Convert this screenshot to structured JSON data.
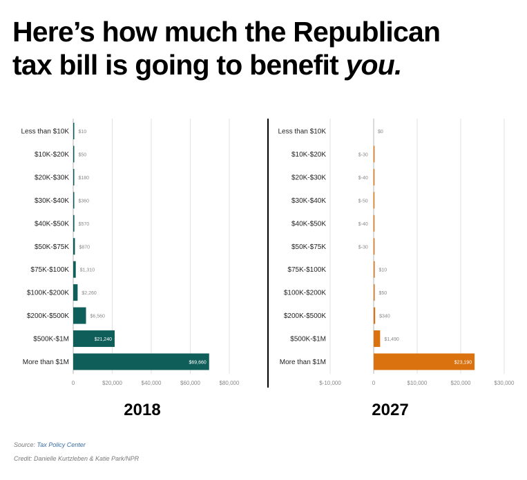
{
  "headline": {
    "line1": "Here’s how much the Republican",
    "line2_prefix": "tax bill is going to benefit ",
    "line2_emphasis": "you."
  },
  "footer": {
    "source_label": "Source: ",
    "source_name": "Tax Policy Center",
    "credit": "Credit: Danielle Kurtzleben & Katie Park/NPR"
  },
  "colors": {
    "bar_2018": "#0f5e5a",
    "bar_2027": "#d9720f",
    "grid": "#e2e2e2",
    "label": "#222222",
    "value_label": "#888888",
    "divider": "#000000"
  },
  "chart_data": [
    {
      "type": "bar",
      "orientation": "horizontal",
      "title": "2018",
      "categories": [
        "Less than $10K",
        "$10K-$20K",
        "$20K-$30K",
        "$30K-$40K",
        "$40K-$50K",
        "$50K-$75K",
        "$75K-$100K",
        "$100K-$200K",
        "$200K-$500K",
        "$500K-$1M",
        "More than $1M"
      ],
      "values": [
        10,
        50,
        180,
        360,
        570,
        870,
        1310,
        2260,
        6560,
        21240,
        69660
      ],
      "value_labels": [
        "$10",
        "$50",
        "$180",
        "$360",
        "$570",
        "$870",
        "$1,310",
        "$2,260",
        "$6,560",
        "$21,240",
        "$69,660"
      ],
      "xlim": [
        0,
        80000
      ],
      "xticks": [
        0,
        20000,
        40000,
        60000,
        80000
      ],
      "xtick_labels": [
        "0",
        "$20,000",
        "$40,000",
        "$60,000",
        "$80,000"
      ]
    },
    {
      "type": "bar",
      "orientation": "horizontal",
      "title": "2027",
      "categories": [
        "Less than $10K",
        "$10K-$20K",
        "$20K-$30K",
        "$30K-$40K",
        "$40K-$50K",
        "$50K-$75K",
        "$75K-$100K",
        "$100K-$200K",
        "$200K-$500K",
        "$500K-$1M",
        "More than $1M"
      ],
      "values": [
        0,
        -30,
        -40,
        -50,
        -40,
        -30,
        10,
        50,
        340,
        1490,
        23190
      ],
      "value_labels": [
        "$0",
        "$-30",
        "$-40",
        "$-50",
        "$-40",
        "$-30",
        "$10",
        "$50",
        "$340",
        "$1,490",
        "$23,190"
      ],
      "xlim": [
        -10000,
        30000
      ],
      "xticks": [
        -10000,
        0,
        10000,
        20000,
        30000
      ],
      "xtick_labels": [
        "$-10,000",
        "0",
        "$10,000",
        "$20,000",
        "$30,000"
      ]
    }
  ]
}
